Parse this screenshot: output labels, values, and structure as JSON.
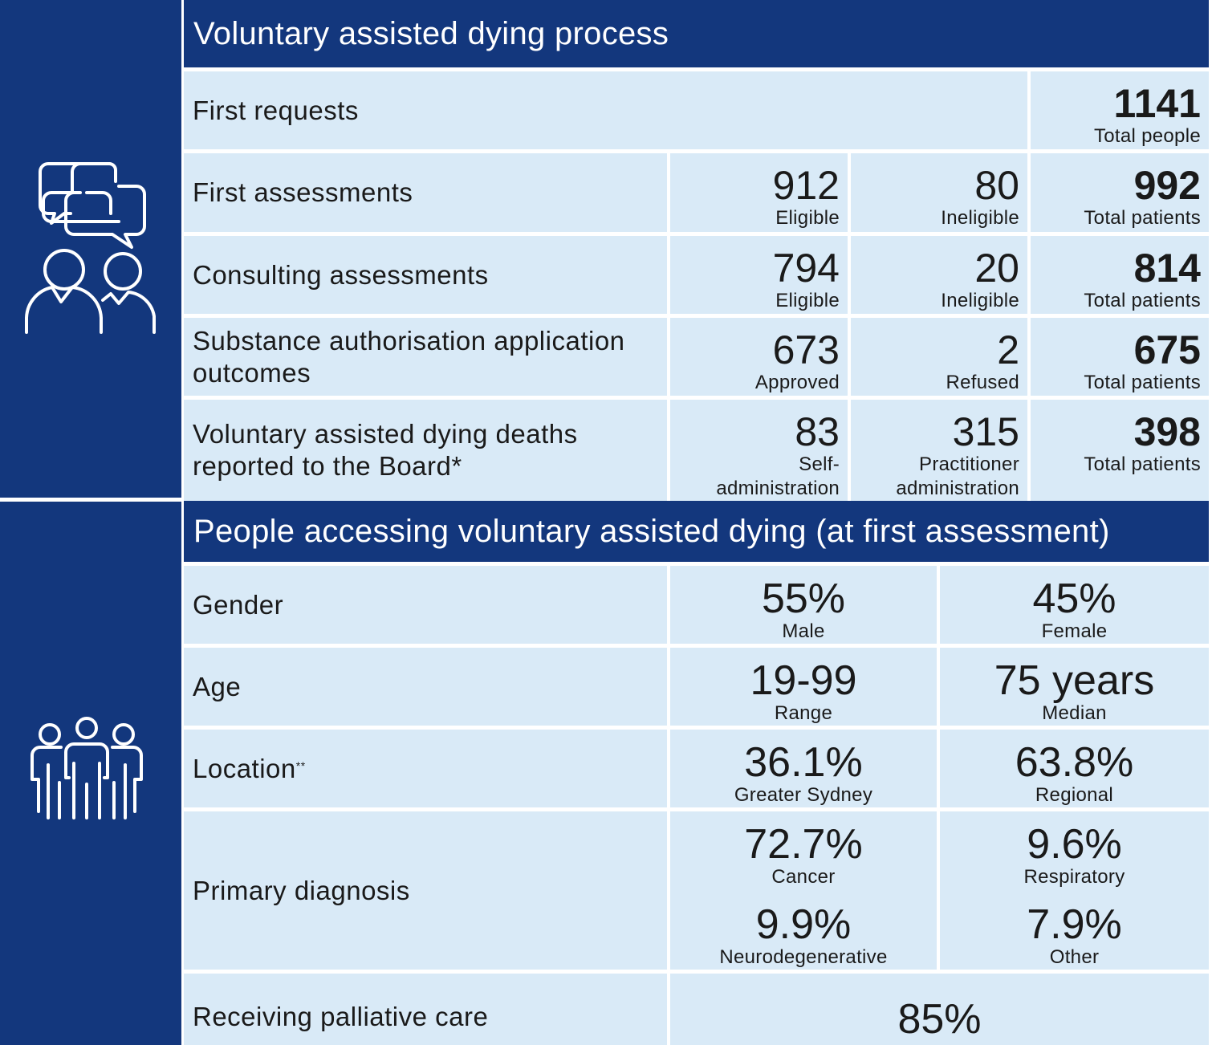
{
  "colors": {
    "navy": "#13377d",
    "light": "#d9eaf7"
  },
  "icons": {
    "section1": "conversation-people-icon",
    "section2": "group-of-people-icon"
  },
  "process": {
    "title": "Voluntary assisted dying process",
    "first_requests": {
      "label": "First requests",
      "total": "1141",
      "total_label": "Total people"
    },
    "rows": [
      {
        "label": "First assessments",
        "a": "912",
        "a_label": "Eligible",
        "b": "80",
        "b_label": "Ineligible",
        "total": "992",
        "total_label": "Total patients"
      },
      {
        "label": "Consulting assessments",
        "a": "794",
        "a_label": "Eligible",
        "b": "20",
        "b_label": "Ineligible",
        "total": "814",
        "total_label": "Total patients"
      },
      {
        "label": "Substance authorisation application outcomes",
        "a": "673",
        "a_label": "Approved",
        "b": "2",
        "b_label": "Refused",
        "total": "675",
        "total_label": "Total patients"
      },
      {
        "label": "Voluntary assisted dying deaths reported to the Board*",
        "a": "83",
        "a_label": "Self-administration",
        "b": "315",
        "b_label": "Practitioner administration",
        "total": "398",
        "total_label": "Total patients"
      }
    ]
  },
  "people": {
    "title": "People accessing voluntary assisted dying (at first assessment)",
    "gender": {
      "label": "Gender",
      "a": "55%",
      "a_label": "Male",
      "b": "45%",
      "b_label": "Female"
    },
    "age": {
      "label": "Age",
      "a": "19-99",
      "a_label": "Range",
      "b": "75 years",
      "b_label": "Median"
    },
    "location": {
      "label": "Location",
      "mark": "**",
      "a": "36.1%",
      "a_label": "Greater Sydney",
      "b": "63.8%",
      "b_label": "Regional"
    },
    "diagnosis": {
      "label": "Primary diagnosis",
      "items": [
        {
          "v": "72.7%",
          "l": "Cancer"
        },
        {
          "v": "9.6%",
          "l": "Respiratory"
        },
        {
          "v": "9.9%",
          "l": "Neurodegenerative"
        },
        {
          "v": "7.9%",
          "l": "Other"
        }
      ]
    },
    "palliative": {
      "label": "Receiving palliative care",
      "v": "85%"
    }
  }
}
